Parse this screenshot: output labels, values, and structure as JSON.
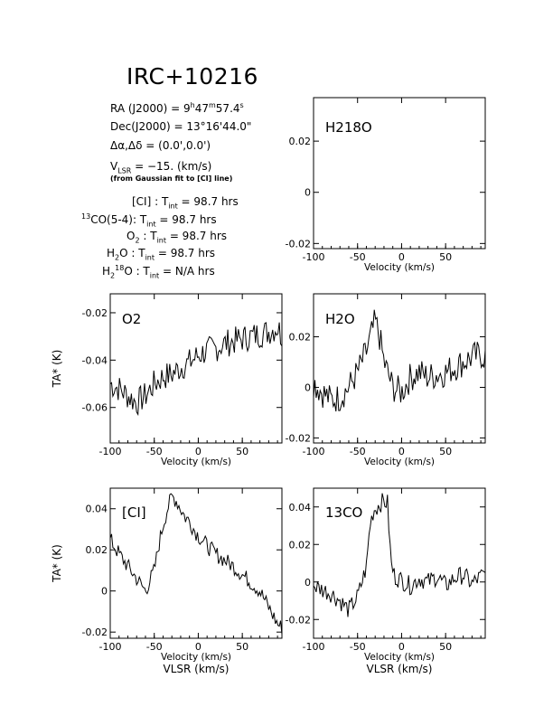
{
  "header": {
    "title": "IRC+10216",
    "ra": "RA (J2000) = 9h47m57.4s",
    "dec": "Dec(J2000) = 13°16'44.0\"",
    "offset": "Δα,Δδ = (0.0',0.0')",
    "vlsr": "VLSR = −15. (km/s)",
    "vlsr_note": "(from Gaussian fit to [CI] line)"
  },
  "integration": [
    {
      "species": "[CI]",
      "label": "[CI] : Tint = 98.7 hrs",
      "value": "98.7 hrs"
    },
    {
      "species": "13CO(5-4)",
      "label": "13CO(5-4): Tint = 98.7 hrs",
      "value": "98.7 hrs"
    },
    {
      "species": "O2",
      "label": "O2 : Tint = 98.7 hrs",
      "value": "98.7 hrs"
    },
    {
      "species": "H2O",
      "label": "H2O : Tint = 98.7 hrs",
      "value": "98.7 hrs"
    },
    {
      "species": "H2 18O",
      "label": "H218O : Tint = N/A hrs",
      "value": "N/A hrs"
    }
  ],
  "chart_data": [
    {
      "type": "line",
      "panel": "H218O",
      "title": "H218O",
      "xlabel": "Velocity (km/s)",
      "ylabel": "",
      "xlim": [
        -100,
        95
      ],
      "ylim": [
        -0.022,
        0.037
      ],
      "xticks": [
        -100,
        -50,
        0,
        50
      ],
      "yticks": [
        -0.02,
        0,
        0.02
      ],
      "series": []
    },
    {
      "type": "line",
      "panel": "O2",
      "title": "O2",
      "xlabel": "Velocity (km/s)",
      "ylabel": "TA* (K)",
      "xlim": [
        -100,
        95
      ],
      "ylim": [
        -0.075,
        -0.012
      ],
      "xticks": [
        -100,
        -50,
        0,
        50
      ],
      "yticks": [
        -0.06,
        -0.04,
        -0.02
      ],
      "series": [
        {
          "x": [
            -100,
            -90,
            -80,
            -70,
            -60,
            -50,
            -40,
            -30,
            -20,
            -10,
            0,
            10,
            20,
            30,
            40,
            50,
            60,
            70,
            80,
            90,
            95
          ],
          "y": [
            -0.05,
            -0.052,
            -0.055,
            -0.058,
            -0.055,
            -0.05,
            -0.047,
            -0.046,
            -0.043,
            -0.041,
            -0.038,
            -0.036,
            -0.035,
            -0.033,
            -0.032,
            -0.031,
            -0.03,
            -0.029,
            -0.028,
            -0.026,
            -0.03
          ]
        }
      ]
    },
    {
      "type": "line",
      "panel": "H2O",
      "title": "H2O",
      "xlabel": "Velocity (km/s)",
      "ylabel": "",
      "xlim": [
        -100,
        95
      ],
      "ylim": [
        -0.022,
        0.037
      ],
      "xticks": [
        -100,
        -50,
        0,
        50
      ],
      "yticks": [
        -0.02,
        0,
        0.02
      ],
      "series": [
        {
          "x": [
            -100,
            -90,
            -80,
            -70,
            -60,
            -50,
            -40,
            -35,
            -30,
            -25,
            -20,
            -10,
            0,
            10,
            20,
            30,
            40,
            50,
            60,
            70,
            80,
            90,
            95
          ],
          "y": [
            0.002,
            -0.002,
            -0.005,
            -0.004,
            0.0,
            0.006,
            0.014,
            0.02,
            0.026,
            0.02,
            0.01,
            0.0,
            -0.002,
            0.004,
            0.006,
            0.004,
            0.005,
            0.006,
            0.008,
            0.01,
            0.012,
            0.013,
            0.012
          ]
        }
      ]
    },
    {
      "type": "line",
      "panel": "[CI]",
      "title": "[CI]",
      "xlabel": "Velocity (km/s)",
      "ylabel": "TA* (K)",
      "xlim": [
        -100,
        95
      ],
      "ylim": [
        -0.023,
        0.05
      ],
      "xticks": [
        -100,
        -50,
        0,
        50
      ],
      "yticks": [
        -0.02,
        0,
        0.02,
        0.04
      ],
      "series": [
        {
          "x": [
            -100,
            -90,
            -80,
            -70,
            -60,
            -50,
            -45,
            -40,
            -35,
            -30,
            -25,
            -20,
            -15,
            -10,
            -5,
            0,
            10,
            20,
            30,
            40,
            50,
            60,
            70,
            80,
            90,
            95
          ],
          "y": [
            0.025,
            0.018,
            0.012,
            0.006,
            0.0,
            0.01,
            0.022,
            0.032,
            0.04,
            0.046,
            0.044,
            0.04,
            0.036,
            0.034,
            0.03,
            0.027,
            0.022,
            0.018,
            0.015,
            0.012,
            0.008,
            0.004,
            0.0,
            -0.008,
            -0.016,
            -0.018
          ]
        }
      ]
    },
    {
      "type": "line",
      "panel": "13CO",
      "title": "13CO",
      "xlabel": "Velocity (km/s)",
      "ylabel": "",
      "xlim": [
        -100,
        95
      ],
      "ylim": [
        -0.03,
        0.05
      ],
      "xticks": [
        -100,
        -50,
        0,
        50
      ],
      "yticks": [
        -0.02,
        0,
        0.02,
        0.04
      ],
      "series": [
        {
          "x": [
            -100,
            -90,
            -80,
            -70,
            -60,
            -50,
            -45,
            -40,
            -36,
            -32,
            -28,
            -24,
            -20,
            -16,
            -12,
            -8,
            0,
            10,
            20,
            30,
            40,
            50,
            60,
            70,
            80,
            90,
            95
          ],
          "y": [
            -0.002,
            -0.004,
            -0.006,
            -0.01,
            -0.015,
            -0.008,
            0.0,
            0.008,
            0.03,
            0.038,
            0.04,
            0.042,
            0.043,
            0.042,
            0.01,
            0.003,
            0.001,
            -0.002,
            0.002,
            0.0,
            0.003,
            -0.002,
            0.002,
            0.004,
            -0.001,
            0.003,
            0.004
          ]
        }
      ]
    }
  ],
  "footer": {
    "vlsr_axis": "VLSR (km/s)"
  }
}
